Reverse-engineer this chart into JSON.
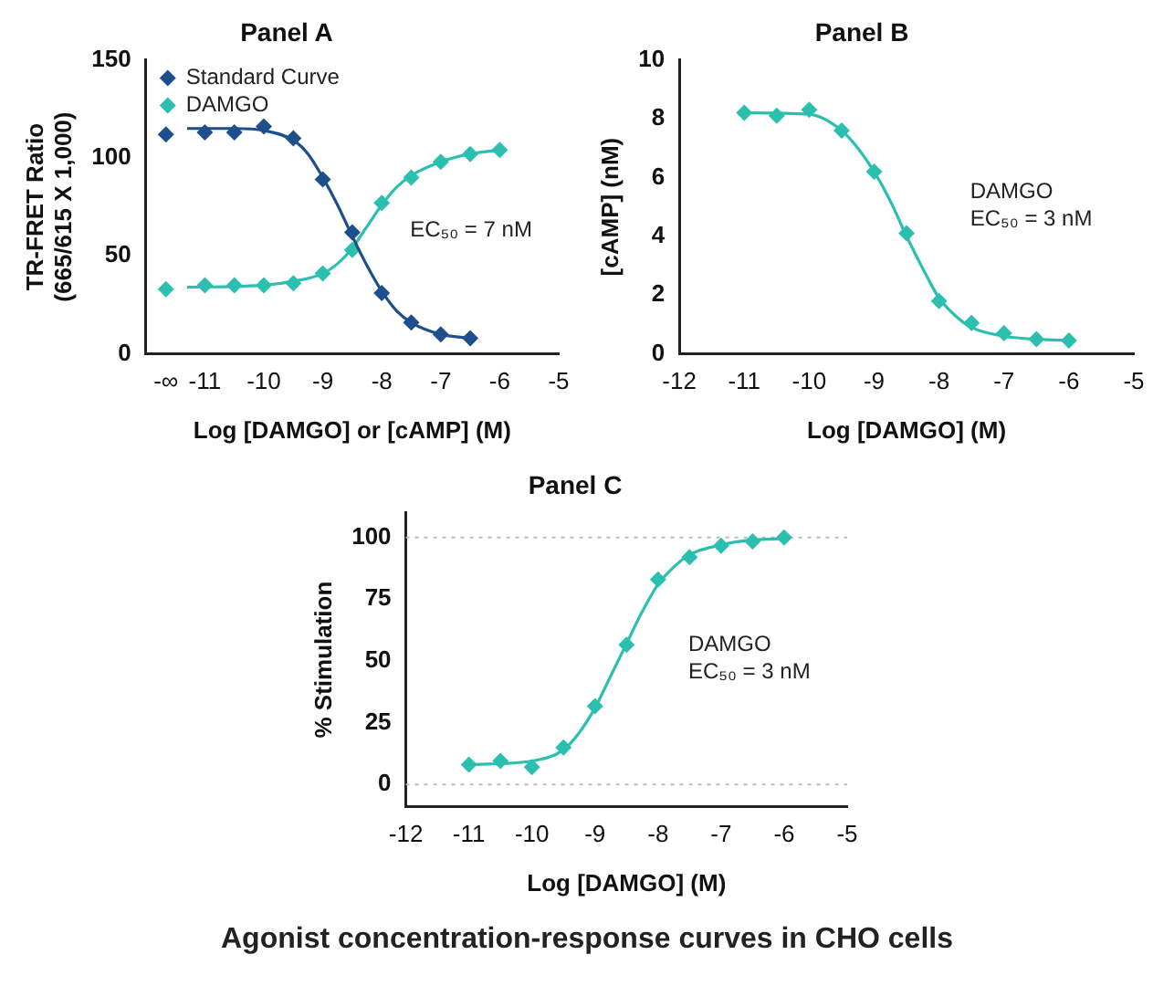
{
  "chart_data": [
    {
      "type": "scatter",
      "title": "Panel A",
      "xlabel": "Log [DAMGO] or [cAMP] (M)",
      "ylabel": "TR-FRET Ratio\n(665/615 X 1,000)",
      "xlim": [
        -12,
        -5
      ],
      "xticks": [
        {
          "value": -11.66,
          "label": "-∞"
        },
        -11,
        -10,
        -9,
        -8,
        -7,
        -6,
        -5
      ],
      "ylim": [
        0,
        150
      ],
      "yticks": [
        0,
        50,
        100,
        150
      ],
      "legend": "top left",
      "annotations": [
        "EC₅₀ = 7 nM"
      ],
      "series": [
        {
          "name": "Standard Curve",
          "type": "scatter",
          "marker": "diamond",
          "color": "#1f4e8c",
          "x": [
            -11.66,
            -11,
            -10.5,
            -10,
            -9.5,
            -9,
            -8.5,
            -8,
            -7.5,
            -7,
            -6.5
          ],
          "values": [
            112,
            113,
            113,
            116,
            110,
            89,
            62,
            31,
            16,
            10,
            8
          ]
        },
        {
          "type": "line",
          "marker": "none",
          "color": "#1f4e8c",
          "x": [
            -11.3,
            -10.5,
            -10,
            -9.5,
            -9.25,
            -9,
            -8.75,
            -8.5,
            -8.25,
            -8,
            -7.75,
            -7.5,
            -7,
            -6.5
          ],
          "values": [
            115,
            115,
            114,
            109,
            102,
            90,
            76,
            60,
            45,
            32,
            22,
            16,
            10,
            8
          ]
        },
        {
          "name": "DAMGO",
          "type": "scatter",
          "marker": "diamond",
          "color": "#2bbfb0",
          "x": [
            -11.66,
            -11,
            -10.5,
            -10,
            -9.5,
            -9,
            -8.5,
            -8,
            -7.5,
            -7,
            -6.5,
            -6
          ],
          "values": [
            33,
            35,
            35,
            35,
            36,
            41,
            53,
            77,
            90,
            98,
            102,
            104
          ]
        },
        {
          "type": "line",
          "marker": "none",
          "color": "#2bbfb0",
          "x": [
            -11.3,
            -10,
            -9.5,
            -9,
            -8.75,
            -8.5,
            -8.25,
            -8,
            -7.75,
            -7.5,
            -7,
            -6.5,
            -6
          ],
          "values": [
            34,
            35,
            37,
            41,
            46,
            54,
            65,
            76,
            85,
            91,
            98,
            102,
            104
          ]
        }
      ]
    },
    {
      "type": "scatter",
      "title": "Panel B",
      "xlabel": "Log [DAMGO] (M)",
      "ylabel": "[cAMP] (nM)",
      "xlim": [
        -12,
        -5
      ],
      "xticks": [
        -12,
        -11,
        -10,
        -9,
        -8,
        -7,
        -6,
        -5
      ],
      "ylim": [
        0,
        10
      ],
      "yticks": [
        0,
        2,
        4,
        6,
        8,
        10
      ],
      "annotations": [
        "DAMGO",
        "EC₅₀ = 3 nM"
      ],
      "series": [
        {
          "type": "scatter",
          "marker": "diamond",
          "color": "#2bbfb0",
          "x": [
            -11,
            -10.5,
            -10,
            -9.5,
            -9,
            -8.5,
            -8,
            -7.5,
            -7,
            -6.5,
            -6
          ],
          "values": [
            8.2,
            8.1,
            8.3,
            7.6,
            6.2,
            4.1,
            1.8,
            1.05,
            0.7,
            0.5,
            0.45
          ]
        },
        {
          "type": "line",
          "marker": "none",
          "color": "#2bbfb0",
          "x": [
            -11,
            -10,
            -9.5,
            -9.25,
            -9,
            -8.75,
            -8.5,
            -8.25,
            -8,
            -7.75,
            -7.5,
            -7,
            -6
          ],
          "values": [
            8.2,
            8.15,
            7.6,
            7,
            6.2,
            5.2,
            4,
            2.9,
            1.9,
            1.3,
            0.9,
            0.6,
            0.45
          ]
        }
      ]
    },
    {
      "type": "scatter",
      "title": "Panel C",
      "xlabel": "Log [DAMGO] (M)",
      "ylabel": "% Stimulation",
      "xlim": [
        -12,
        -5
      ],
      "xticks": [
        -12,
        -11,
        -10,
        -9,
        -8,
        -7,
        -6,
        -5
      ],
      "ylim": [
        -9,
        110
      ],
      "yticks": [
        0,
        25,
        50,
        75,
        100
      ],
      "annotations": [
        "DAMGO",
        "EC₅₀ = 3 nM"
      ],
      "ref_lines": [
        {
          "axis": "y",
          "value": 0,
          "color": "#bbbbbb",
          "line_style": "dotted"
        },
        {
          "axis": "y",
          "value": 100,
          "color": "#bbbbbb",
          "line_style": "dotted"
        }
      ],
      "series": [
        {
          "type": "scatter",
          "marker": "diamond",
          "color": "#2bbfb0",
          "x": [
            -11,
            -10.5,
            -10,
            -9.5,
            -9,
            -8.5,
            -8,
            -7.5,
            -7,
            -6.5,
            -6
          ],
          "values": [
            8,
            9.5,
            7,
            15,
            31.7,
            56.5,
            83,
            92,
            96.6,
            98.4,
            100
          ]
        },
        {
          "type": "line",
          "marker": "none",
          "color": "#2bbfb0",
          "x": [
            -11,
            -10,
            -9.5,
            -9.25,
            -9,
            -8.75,
            -8.5,
            -8.25,
            -8,
            -7.75,
            -7.5,
            -7,
            -6.5,
            -6
          ],
          "values": [
            8,
            9.5,
            14,
            21,
            31,
            44,
            57,
            70,
            81,
            88,
            93,
            97,
            99,
            99.5
          ]
        }
      ]
    },
    {
      "type": "other",
      "title": "Agonist concentration-response curves in CHO cells"
    }
  ]
}
